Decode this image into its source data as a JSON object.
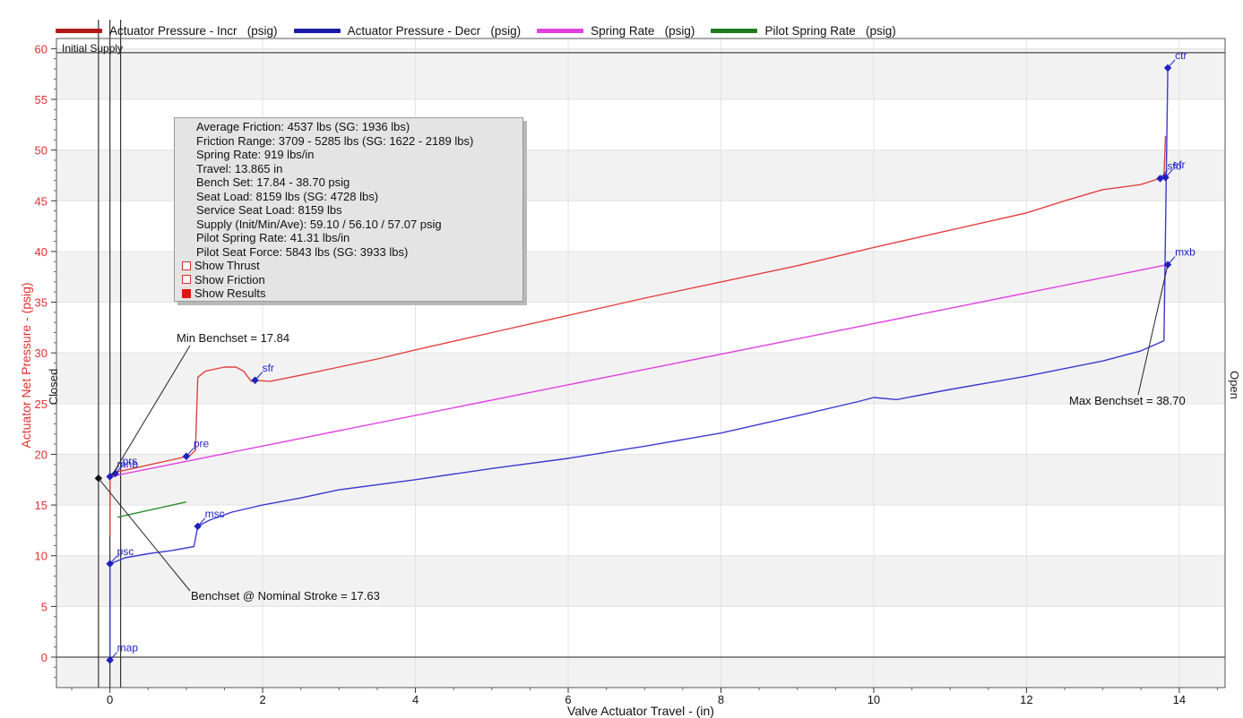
{
  "legend": [
    {
      "label": "Actuator Pressure - Incr   (psig)",
      "color": "#b11a1a"
    },
    {
      "label": "Actuator Pressure - Decr   (psig)",
      "color": "#1a1aa8"
    },
    {
      "label": "Spring Rate   (psig)",
      "color": "#e040e0"
    },
    {
      "label": "Pilot Spring Rate   (psig)",
      "color": "#1f7a1f"
    }
  ],
  "results_panel": {
    "lines": [
      "Average Friction: 4537 lbs (SG: 1936 lbs)",
      "Friction Range: 3709 - 5285 lbs (SG: 1622 - 2189 lbs)",
      "Spring Rate: 919 lbs/in",
      "Travel: 13.865 in",
      "Bench Set: 17.84 - 38.70 psig",
      "Seat Load: 8159 lbs (SG: 4728 lbs)",
      "Service Seat Load: 8159 lbs",
      "Supply (Init/Min/Ave): 59.10 / 56.10 / 57.07 psig",
      "Pilot Spring Rate: 41.31 lbs/in",
      "Pilot Seat Force: 5843 lbs (SG: 3933 lbs)"
    ],
    "checkboxes": [
      {
        "label": "Show Thrust",
        "checked": false
      },
      {
        "label": "Show Friction",
        "checked": false
      },
      {
        "label": "Show Results",
        "checked": true
      }
    ]
  },
  "chart_data": {
    "type": "line",
    "xlabel": "Valve Actuator Travel - (in)",
    "ylabel": "Actuator Net Pressure - (psig)",
    "xlim": [
      -0.7,
      14.6
    ],
    "ylim": [
      -3,
      61
    ],
    "x_ticks": [
      0,
      2,
      4,
      6,
      8,
      10,
      12,
      14
    ],
    "y_ticks": [
      0,
      5,
      10,
      15,
      20,
      25,
      30,
      35,
      40,
      45,
      50,
      55,
      60
    ],
    "left_side_label": "Closed",
    "right_side_label": "Open",
    "supply_line": {
      "y": 59.6,
      "label": "Initial Supply"
    },
    "vertical_lines_x": [
      -0.15,
      0.0,
      0.14
    ],
    "series": [
      {
        "name": "Actuator Pressure - Incr   (psig)",
        "color": "#e24040",
        "points": [
          [
            0.0,
            12.0
          ],
          [
            0.0,
            17.9
          ],
          [
            0.05,
            18.2
          ],
          [
            0.3,
            18.6
          ],
          [
            0.6,
            19.1
          ],
          [
            0.9,
            19.6
          ],
          [
            1.05,
            19.9
          ],
          [
            1.12,
            20.4
          ],
          [
            1.15,
            27.6
          ],
          [
            1.25,
            28.2
          ],
          [
            1.5,
            28.6
          ],
          [
            1.65,
            28.6
          ],
          [
            1.75,
            28.2
          ],
          [
            1.85,
            27.2
          ],
          [
            1.9,
            27.3
          ],
          [
            2.1,
            27.2
          ],
          [
            2.5,
            27.8
          ],
          [
            3.0,
            28.6
          ],
          [
            3.5,
            29.4
          ],
          [
            4.0,
            30.3
          ],
          [
            5.0,
            32.0
          ],
          [
            6.0,
            33.7
          ],
          [
            7.0,
            35.4
          ],
          [
            8.0,
            37.0
          ],
          [
            9.0,
            38.6
          ],
          [
            10.0,
            40.4
          ],
          [
            11.0,
            42.1
          ],
          [
            12.0,
            43.8
          ],
          [
            12.5,
            45.0
          ],
          [
            13.0,
            46.1
          ],
          [
            13.5,
            46.6
          ],
          [
            13.7,
            47.1
          ],
          [
            13.8,
            47.3
          ],
          [
            13.82,
            51.4
          ]
        ]
      },
      {
        "name": "Actuator Pressure - Decr   (psig)",
        "color": "#3a3ad0",
        "points": [
          [
            0.0,
            -0.3
          ],
          [
            0.0,
            9.2
          ],
          [
            0.2,
            9.8
          ],
          [
            0.5,
            10.2
          ],
          [
            0.8,
            10.5
          ],
          [
            1.1,
            10.9
          ],
          [
            1.15,
            12.9
          ],
          [
            1.3,
            13.5
          ],
          [
            1.6,
            14.3
          ],
          [
            2.0,
            15.0
          ],
          [
            2.5,
            15.7
          ],
          [
            3.0,
            16.5
          ],
          [
            4.0,
            17.5
          ],
          [
            5.0,
            18.6
          ],
          [
            6.0,
            19.6
          ],
          [
            7.0,
            20.8
          ],
          [
            8.0,
            22.1
          ],
          [
            9.0,
            23.8
          ],
          [
            9.8,
            25.2
          ],
          [
            10.0,
            25.6
          ],
          [
            10.3,
            25.4
          ],
          [
            11.0,
            26.4
          ],
          [
            12.0,
            27.7
          ],
          [
            13.0,
            29.2
          ],
          [
            13.5,
            30.2
          ],
          [
            13.8,
            31.2
          ],
          [
            13.85,
            58.1
          ]
        ]
      },
      {
        "name": "Spring Rate   (psig)",
        "color": "#e040e0",
        "points": [
          [
            0.0,
            17.8
          ],
          [
            13.85,
            38.7
          ]
        ]
      },
      {
        "name": "Pilot Spring Rate   (psig)",
        "color": "#2e8b2e",
        "points": [
          [
            0.1,
            13.8
          ],
          [
            1.0,
            15.3
          ]
        ]
      }
    ],
    "markers": [
      {
        "label": "ctr",
        "x": 13.85,
        "y": 58.1
      },
      {
        "label": "efr",
        "x": 13.82,
        "y": 47.3
      },
      {
        "label": "sfo",
        "x": 13.75,
        "y": 47.2
      },
      {
        "label": "mxb",
        "x": 13.85,
        "y": 38.7
      },
      {
        "label": "sfr",
        "x": 1.9,
        "y": 27.3
      },
      {
        "label": "pre",
        "x": 1.0,
        "y": 19.8
      },
      {
        "label": "prs",
        "x": 0.07,
        "y": 18.1
      },
      {
        "label": "mnb",
        "x": 0.0,
        "y": 17.8
      },
      {
        "label": "msc",
        "x": 1.15,
        "y": 12.9
      },
      {
        "label": "psc",
        "x": 0.0,
        "y": 9.2
      },
      {
        "label": "map",
        "x": 0.0,
        "y": -0.3
      }
    ],
    "extra_point": {
      "x": -0.15,
      "y": 17.63
    },
    "annotations": [
      {
        "text": "Min Benchset = 17.84",
        "target_x": 0.02,
        "target_y": 17.84
      },
      {
        "text": "Benchset @ Nominal Stroke = 17.63",
        "target_x": -0.15,
        "target_y": 17.63
      },
      {
        "text": "Max Benchset = 38.70",
        "target_x": 13.85,
        "target_y": 38.7
      }
    ]
  }
}
